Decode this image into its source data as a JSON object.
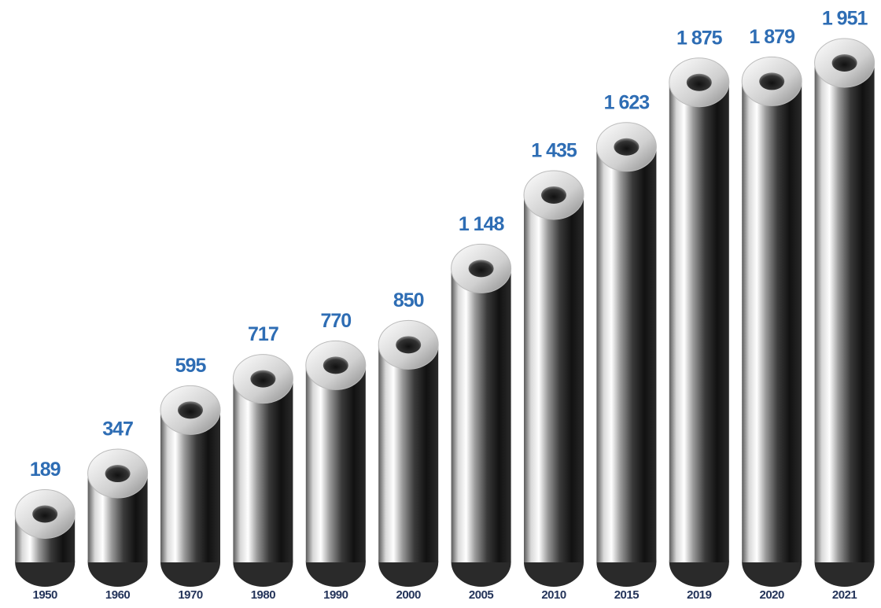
{
  "chart_data": {
    "type": "bar",
    "categories": [
      "1950",
      "1960",
      "1970",
      "1980",
      "1990",
      "2000",
      "2005",
      "2010",
      "2015",
      "2019",
      "2020",
      "2021"
    ],
    "values": [
      189,
      347,
      595,
      717,
      770,
      850,
      1148,
      1435,
      1623,
      1875,
      1879,
      1951
    ],
    "value_labels": [
      "189",
      "347",
      "595",
      "717",
      "770",
      "850",
      "1 148",
      "1 435",
      "1 623",
      "1 875",
      "1 879",
      "1 951"
    ],
    "color": "#8a8a8a"
  }
}
